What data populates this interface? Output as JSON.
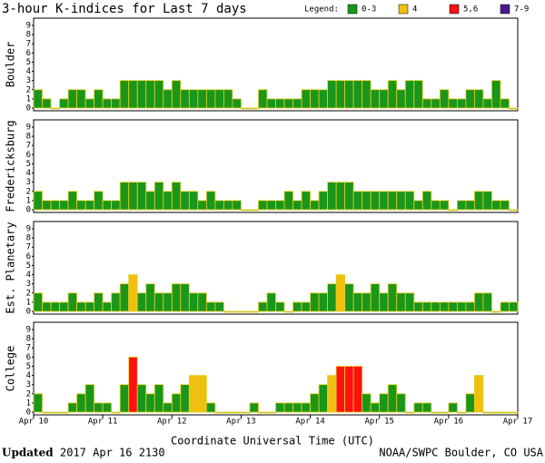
{
  "title": "3-hour K-indices for Last 7 days",
  "legend": {
    "label": "Legend:",
    "items": [
      {
        "label": "0-3",
        "color": "#1a961a"
      },
      {
        "label": "4",
        "color": "#f0c010"
      },
      {
        "label": "5,6",
        "color": "#ff1010"
      },
      {
        "label": "7-9",
        "color": "#4b1a8b"
      }
    ]
  },
  "chart_data": [
    {
      "type": "bar",
      "ylabel": "Boulder",
      "ylim": [
        0,
        9
      ],
      "yticks": [
        0,
        1,
        2,
        3,
        4,
        5,
        6,
        7,
        8,
        9
      ],
      "xlim": [
        0,
        7
      ],
      "values": [
        2,
        1,
        0,
        1,
        2,
        2,
        1,
        2,
        1,
        1,
        3,
        3,
        3,
        3,
        3,
        2,
        3,
        2,
        2,
        2,
        2,
        2,
        2,
        1,
        0,
        0,
        2,
        1,
        1,
        1,
        1,
        2,
        2,
        2,
        3,
        3,
        3,
        3,
        3,
        2,
        2,
        3,
        2,
        3,
        3,
        1,
        1,
        2,
        1,
        1,
        2,
        2,
        1,
        3,
        1,
        0
      ]
    },
    {
      "type": "bar",
      "ylabel": "Fredericksburg",
      "ylim": [
        0,
        9
      ],
      "yticks": [
        0,
        1,
        2,
        3,
        4,
        5,
        6,
        7,
        8,
        9
      ],
      "xlim": [
        0,
        7
      ],
      "values": [
        2,
        1,
        1,
        1,
        2,
        1,
        1,
        2,
        1,
        1,
        3,
        3,
        3,
        2,
        3,
        2,
        3,
        2,
        2,
        1,
        2,
        1,
        1,
        1,
        0,
        0,
        1,
        1,
        1,
        2,
        1,
        2,
        1,
        2,
        3,
        3,
        3,
        2,
        2,
        2,
        2,
        2,
        2,
        2,
        1,
        2,
        1,
        1,
        0,
        1,
        1,
        2,
        2,
        1,
        1,
        0
      ]
    },
    {
      "type": "bar",
      "ylabel": "Est. Planetary",
      "ylim": [
        0,
        9
      ],
      "yticks": [
        0,
        1,
        2,
        3,
        4,
        5,
        6,
        7,
        8,
        9
      ],
      "xlim": [
        0,
        7
      ],
      "values": [
        2,
        1,
        1,
        1,
        2,
        1,
        1,
        2,
        1,
        2,
        3,
        4,
        2,
        3,
        2,
        2,
        3,
        3,
        2,
        2,
        1,
        1,
        0,
        0,
        0,
        0,
        1,
        2,
        1,
        0,
        1,
        1,
        2,
        2,
        3,
        4,
        3,
        2,
        2,
        3,
        2,
        3,
        2,
        2,
        1,
        1,
        1,
        1,
        1,
        1,
        1,
        2,
        2,
        0,
        1,
        1
      ]
    },
    {
      "type": "bar",
      "ylabel": "College",
      "ylim": [
        0,
        9
      ],
      "yticks": [
        0,
        1,
        2,
        3,
        4,
        5,
        6,
        7,
        8,
        9
      ],
      "xlim": [
        0,
        7
      ],
      "xticks": [
        {
          "value": 0,
          "label": "Apr 10"
        },
        {
          "value": 1,
          "label": "Apr 11"
        },
        {
          "value": 2,
          "label": "Apr 12"
        },
        {
          "value": 3,
          "label": "Apr 13"
        },
        {
          "value": 4,
          "label": "Apr 14"
        },
        {
          "value": 5,
          "label": "Apr 15"
        },
        {
          "value": 6,
          "label": "Apr 16"
        },
        {
          "value": 7,
          "label": "Apr 17"
        }
      ],
      "xlabel": "Coordinate Universal Time (UTC)",
      "values": [
        2,
        0,
        0,
        0,
        1,
        2,
        3,
        1,
        1,
        0,
        3,
        6,
        3,
        2,
        3,
        1,
        2,
        3,
        4,
        4,
        1,
        0,
        0,
        0,
        0,
        1,
        0,
        0,
        1,
        1,
        1,
        1,
        2,
        3,
        4,
        5,
        5,
        5,
        2,
        1,
        2,
        3,
        2,
        0,
        1,
        1,
        0,
        0,
        1,
        0,
        2,
        4,
        0,
        0,
        0,
        0
      ]
    }
  ],
  "footer": {
    "updated_label": "Updated",
    "updated_time": "2017 Apr 16 2130",
    "credit": "NOAA/SWPC Boulder, CO USA"
  }
}
